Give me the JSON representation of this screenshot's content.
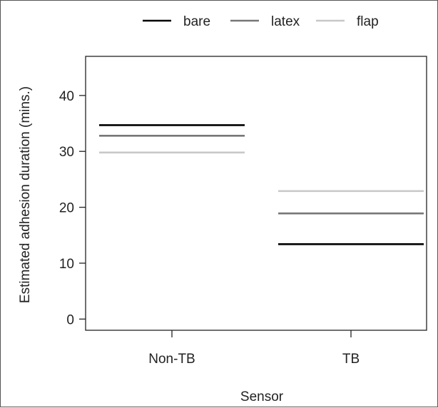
{
  "chart_data": {
    "type": "line",
    "categories": [
      "Non-TB",
      "TB"
    ],
    "xlabel": "Sensor",
    "ylabel": "Estimated adhesion duration (mins.)",
    "ylim": [
      -2,
      47
    ],
    "yticks": [
      0,
      10,
      20,
      30,
      40
    ],
    "grid": false,
    "legend": "top",
    "series": [
      {
        "name": "bare",
        "values": [
          34.7,
          13.4
        ],
        "color": "#000000"
      },
      {
        "name": "latex",
        "values": [
          32.8,
          18.9
        ],
        "color": "#777777"
      },
      {
        "name": "flap",
        "values": [
          29.8,
          22.9
        ],
        "color": "#c8c8c8"
      }
    ]
  }
}
